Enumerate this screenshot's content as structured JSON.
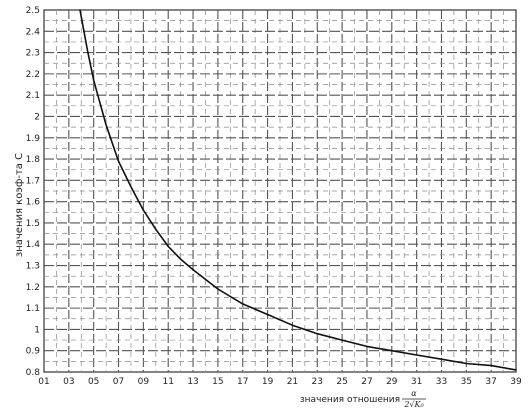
{
  "chart_data": {
    "type": "line",
    "title": "",
    "xlabel": "значения отношения",
    "xlabel_fraction": {
      "numerator": "α",
      "denominator": "2√K₀"
    },
    "ylabel": "значения коэф-та C",
    "xlim": [
      0.1,
      3.9
    ],
    "ylim": [
      0.8,
      2.5
    ],
    "grid": true,
    "x_tick_labels": [
      "01",
      "03",
      "05",
      "07",
      "09",
      "11",
      "13",
      "15",
      "17",
      "19",
      "21",
      "23",
      "25",
      "27",
      "29",
      "31",
      "33",
      "35",
      "37",
      "39"
    ],
    "y_tick_labels": [
      "0.8",
      "0.9",
      "1",
      "1.1",
      "1.2",
      "1.3",
      "1.4",
      "1.5",
      "1.6",
      "1.7",
      "1.8",
      "1.9",
      "2",
      "2.1",
      "2.2",
      "2.3",
      "2.4",
      "2.5"
    ],
    "series": [
      {
        "x": [
          0.39,
          0.45,
          0.5,
          0.6,
          0.7,
          0.8,
          0.9,
          1.0,
          1.1,
          1.2,
          1.3,
          1.5,
          1.7,
          1.9,
          2.1,
          2.3,
          2.5,
          2.7,
          2.9,
          3.1,
          3.3,
          3.5,
          3.7,
          3.9
        ],
        "y": [
          2.5,
          2.31,
          2.17,
          1.96,
          1.79,
          1.67,
          1.56,
          1.47,
          1.39,
          1.33,
          1.28,
          1.19,
          1.12,
          1.07,
          1.02,
          0.98,
          0.95,
          0.92,
          0.9,
          0.88,
          0.86,
          0.84,
          0.83,
          0.81
        ]
      }
    ]
  }
}
